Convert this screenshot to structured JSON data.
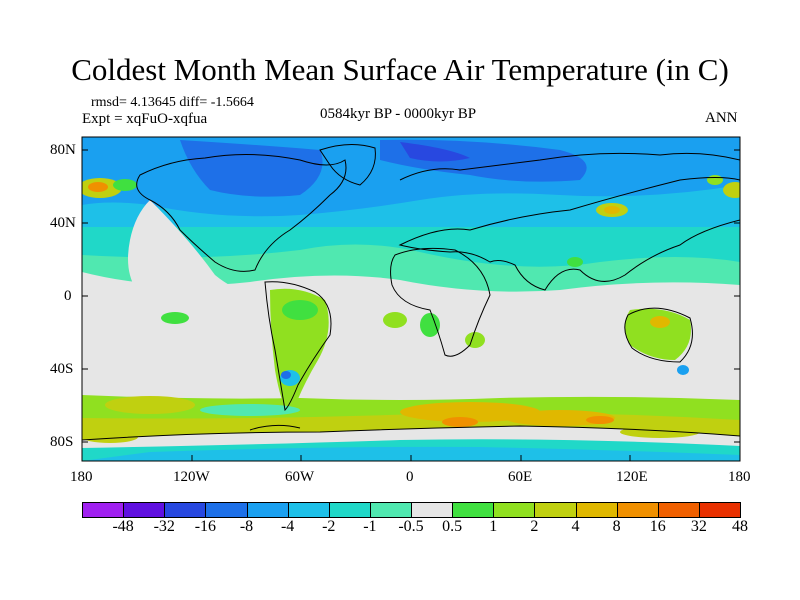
{
  "title": "Coldest Month Mean Surface Air Temperature (in C)",
  "stats": "rmsd= 4.13645  diff= -1.5664",
  "experiment": "Expt = xqFuO-xqfua",
  "period": "0584kyr BP - 0000kyr BP",
  "season": "ANN",
  "lat_ticks": [
    "80N",
    "40N",
    "0",
    "40S",
    "80S"
  ],
  "lon_ticks": [
    "180",
    "120W",
    "60W",
    "0",
    "60E",
    "120E",
    "180"
  ],
  "colorbar": {
    "colors": [
      "#a020f0",
      "#6010e0",
      "#2848e0",
      "#1e70e8",
      "#1aa0f0",
      "#1ec0e8",
      "#20d8c8",
      "#50e8b0",
      "#e6e6e6",
      "#40e040",
      "#90e020",
      "#c0d010",
      "#e0b800",
      "#f09000",
      "#f06000",
      "#e83000"
    ],
    "labels": [
      "-48",
      "-32",
      "-16",
      "-8",
      "-4",
      "-2",
      "-1",
      "-0.5",
      "0.5",
      "1",
      "2",
      "4",
      "8",
      "16",
      "32",
      "48"
    ]
  }
}
